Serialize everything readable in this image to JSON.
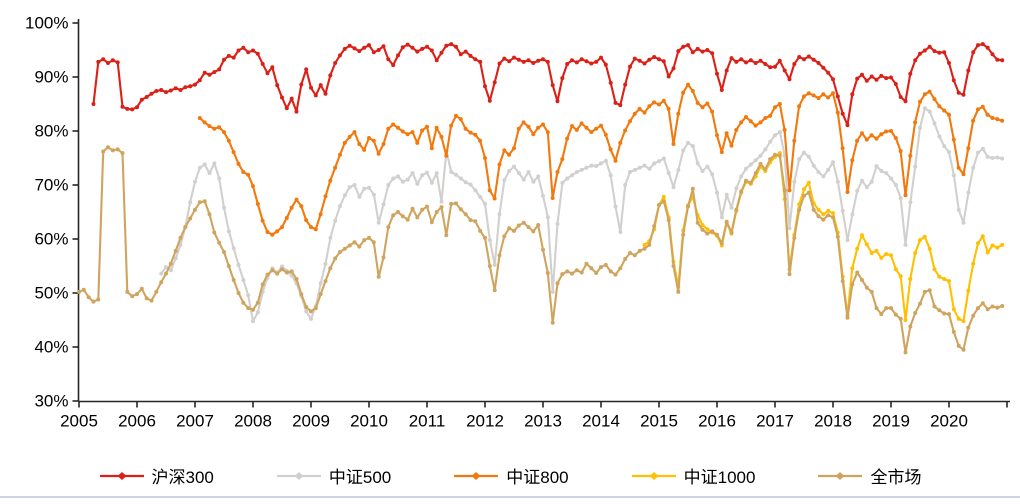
{
  "chart_data": {
    "type": "line",
    "title": "",
    "xlabel": "",
    "ylabel": "",
    "grid": false,
    "legend_position": "bottom",
    "ylim": [
      30,
      100
    ],
    "xlim": [
      2005,
      2021
    ],
    "y_tick_labels": [
      "100%",
      "90%",
      "80%",
      "70%",
      "60%",
      "50%",
      "40%",
      "30%"
    ],
    "x_tick_labels": [
      "2005",
      "2006",
      "2007",
      "2008",
      "2009",
      "2010",
      "2011",
      "2012",
      "2013",
      "2014",
      "2015",
      "2016",
      "2017",
      "2018",
      "2019",
      "2020"
    ],
    "series": [
      {
        "key": "hs300",
        "name": "沪深300",
        "color": "#db2018",
        "start": 2005.25,
        "step_months": 1,
        "values": [
          85.0,
          92.8,
          93.3,
          92.6,
          93.1,
          92.7,
          84.5,
          84.1,
          84.0,
          84.4,
          85.8,
          86.3,
          86.9,
          87.4,
          87.6,
          87.2,
          87.5,
          87.9,
          87.6,
          88.1,
          88.3,
          88.6,
          89.4,
          90.8,
          90.4,
          90.9,
          91.4,
          93.2,
          93.9,
          93.6,
          94.9,
          95.4,
          94.6,
          94.9,
          94.3,
          92.4,
          90.7,
          91.8,
          88.5,
          86.2,
          84.2,
          86.0,
          83.6,
          88.6,
          91.4,
          88.0,
          86.6,
          88.5,
          86.9,
          90.3,
          92.6,
          94.0,
          95.2,
          95.8,
          95.3,
          94.8,
          95.4,
          95.9,
          94.6,
          95.0,
          95.7,
          93.3,
          92.2,
          94.0,
          95.5,
          96.0,
          95.4,
          94.7,
          95.2,
          95.6,
          94.9,
          93.1,
          94.5,
          95.8,
          96.1,
          95.6,
          94.2,
          94.7,
          93.9,
          93.3,
          92.8,
          88.3,
          85.6,
          89.0,
          92.5,
          93.4,
          92.9,
          93.6,
          93.2,
          92.8,
          93.1,
          92.6,
          93.0,
          93.3,
          92.8,
          88.5,
          85.5,
          89.8,
          92.4,
          93.1,
          92.7,
          93.3,
          92.9,
          92.5,
          92.8,
          93.6,
          92.3,
          88.9,
          85.2,
          84.8,
          88.6,
          91.9,
          93.4,
          93.0,
          92.5,
          93.2,
          93.7,
          93.3,
          92.9,
          90.1,
          91.6,
          94.8,
          95.6,
          95.9,
          94.6,
          95.2,
          94.7,
          95.0,
          94.4,
          90.6,
          87.6,
          91.2,
          93.5,
          92.8,
          93.3,
          92.7,
          93.1,
          92.6,
          93.0,
          92.4,
          91.8,
          91.9,
          93.0,
          91.2,
          89.6,
          92.4,
          93.7,
          93.3,
          93.8,
          93.2,
          92.6,
          91.7,
          90.8,
          89.6,
          86.4,
          83.2,
          81.1,
          86.8,
          89.7,
          90.4,
          89.3,
          90.1,
          89.5,
          90.2,
          89.8,
          89.9,
          88.7,
          86.3,
          85.5,
          90.6,
          93.1,
          94.3,
          94.9,
          95.6,
          94.8,
          94.5,
          94.6,
          92.6,
          89.4,
          87.1,
          86.7,
          91.2,
          94.6,
          95.9,
          96.1,
          95.4,
          94.2,
          93.2,
          93.1
        ]
      },
      {
        "key": "zz500",
        "name": "中证500",
        "color": "#d2d0ce",
        "start": 2006.417,
        "step_months": 1,
        "values": [
          53.6,
          54.8,
          54.2,
          56.4,
          58.9,
          62.3,
          66.8,
          70.6,
          73.2,
          73.8,
          72.2,
          74.0,
          71.2,
          65.8,
          61.4,
          58.3,
          55.2,
          52.4,
          49.6,
          44.8,
          46.4,
          50.2,
          52.8,
          54.6,
          53.8,
          54.9,
          54.1,
          53.2,
          51.8,
          49.4,
          46.6,
          45.2,
          47.6,
          51.8,
          55.4,
          60.2,
          63.4,
          66.1,
          68.1,
          69.6,
          70.0,
          67.8,
          69.3,
          69.5,
          68.2,
          63.0,
          66.4,
          70.0,
          71.2,
          71.6,
          70.6,
          71.0,
          72.2,
          70.2,
          71.8,
          72.3,
          70.4,
          72.2,
          66.9,
          76.3,
          72.4,
          71.9,
          71.2,
          70.5,
          70.1,
          69.0,
          67.8,
          66.5,
          59.8,
          55.2,
          64.6,
          70.9,
          72.6,
          73.4,
          72.2,
          71.0,
          72.4,
          70.6,
          71.6,
          68.0,
          64.0,
          50.2,
          62.8,
          70.4,
          71.2,
          71.8,
          72.4,
          72.8,
          73.2,
          73.6,
          73.5,
          74.0,
          74.5,
          71.8,
          66.0,
          61.3,
          70.0,
          72.4,
          72.8,
          73.2,
          73.6,
          73.0,
          74.0,
          74.4,
          74.9,
          72.2,
          69.6,
          72.8,
          76.4,
          77.8,
          77.2,
          74.0,
          72.6,
          73.4,
          72.0,
          68.6,
          64.0,
          68.2,
          65.8,
          69.4,
          71.6,
          73.0,
          73.8,
          74.6,
          75.4,
          76.6,
          78.0,
          79.2,
          79.8,
          75.4,
          62.0,
          70.6,
          74.8,
          76.0,
          75.2,
          73.6,
          72.4,
          71.6,
          72.8,
          74.2,
          70.6,
          65.2,
          59.8,
          64.6,
          68.9,
          70.8,
          69.6,
          70.6,
          73.5,
          72.6,
          72.2,
          71.2,
          70.0,
          67.6,
          58.9,
          66.8,
          73.4,
          80.6,
          84.2,
          83.6,
          81.4,
          79.0,
          77.2,
          76.1,
          71.8,
          65.4,
          63.0,
          68.6,
          73.2,
          76.0,
          76.7,
          75.2,
          75.0,
          75.1,
          74.9
        ]
      },
      {
        "key": "zz800",
        "name": "中证800",
        "color": "#f1790e",
        "start": 2007.083,
        "step_months": 1,
        "values": [
          82.4,
          81.6,
          80.9,
          80.4,
          80.7,
          79.8,
          78.2,
          76.1,
          73.9,
          72.4,
          71.9,
          69.8,
          66.5,
          63.4,
          61.3,
          60.8,
          61.4,
          62.2,
          63.9,
          65.8,
          67.3,
          66.1,
          63.5,
          62.2,
          61.8,
          64.6,
          67.9,
          70.8,
          73.2,
          75.6,
          77.8,
          78.9,
          79.8,
          77.6,
          76.5,
          78.7,
          78.2,
          75.8,
          77.6,
          80.4,
          81.2,
          80.6,
          79.9,
          79.4,
          79.8,
          77.8,
          80.1,
          80.8,
          76.8,
          80.6,
          78.9,
          75.4,
          81.0,
          82.8,
          82.2,
          80.4,
          79.7,
          79.3,
          78.2,
          75.0,
          69.0,
          67.5,
          73.8,
          76.4,
          75.6,
          76.8,
          80.4,
          81.6,
          80.8,
          79.4,
          80.6,
          81.2,
          79.8,
          67.6,
          72.4,
          74.8,
          78.6,
          80.9,
          80.2,
          81.4,
          80.6,
          79.8,
          80.4,
          81.0,
          79.3,
          76.6,
          74.5,
          77.8,
          80.1,
          81.8,
          83.2,
          84.1,
          83.4,
          84.6,
          85.3,
          84.9,
          85.6,
          84.1,
          77.6,
          83.2,
          87.1,
          88.6,
          87.4,
          85.2,
          84.4,
          85.1,
          83.6,
          79.2,
          76.1,
          79.6,
          77.3,
          80.2,
          81.6,
          82.6,
          81.8,
          81.0,
          81.6,
          82.4,
          82.8,
          84.4,
          85.0,
          80.2,
          69.0,
          78.2,
          84.6,
          86.4,
          87.0,
          86.6,
          86.1,
          86.8,
          86.2,
          87.0,
          83.4,
          76.8,
          68.7,
          74.6,
          78.2,
          79.6,
          78.4,
          79.2,
          78.6,
          79.4,
          79.9,
          80.0,
          78.7,
          76.3,
          68.1,
          75.4,
          81.6,
          85.4,
          86.8,
          87.3,
          85.9,
          84.6,
          83.8,
          83.0,
          78.4,
          73.2,
          72.0,
          76.8,
          81.9,
          84.0,
          84.5,
          83.0,
          82.4,
          82.2,
          81.9
        ]
      },
      {
        "key": "zz1000",
        "name": "中证1000",
        "color": "#ffc003",
        "start": 2014.75,
        "step_months": 1,
        "values": [
          58.9,
          59.6,
          61.8,
          66.3,
          67.8,
          64.0,
          55.8,
          51.2,
          61.6,
          66.2,
          67.8,
          64.4,
          62.6,
          61.8,
          61.2,
          60.6,
          58.8,
          63.0,
          61.0,
          65.2,
          68.6,
          70.6,
          70.2,
          71.6,
          73.4,
          72.6,
          74.2,
          75.2,
          75.9,
          67.4,
          54.4,
          60.8,
          66.4,
          69.2,
          70.4,
          66.6,
          65.4,
          64.6,
          65.2,
          64.8,
          61.2,
          53.0,
          45.9,
          54.6,
          58.2,
          60.7,
          59.0,
          57.4,
          57.8,
          56.5,
          57.2,
          57.0,
          54.4,
          53.1,
          45.0,
          52.6,
          57.4,
          59.8,
          60.4,
          58.2,
          54.4,
          53.0,
          52.6,
          52.2,
          47.0,
          45.2,
          44.8,
          50.4,
          55.4,
          59.2,
          60.5,
          57.5,
          58.8,
          58.4,
          58.9
        ]
      },
      {
        "key": "all-market",
        "name": "全市场",
        "color": "#cfa45f",
        "start": 2005.0,
        "step_months": 1,
        "values": [
          50.2,
          50.6,
          49.2,
          48.4,
          48.8,
          76.2,
          77.0,
          76.4,
          76.6,
          75.9,
          50.2,
          49.4,
          49.8,
          50.8,
          49.0,
          48.6,
          50.2,
          52.0,
          53.6,
          55.4,
          57.8,
          60.2,
          62.2,
          63.8,
          65.4,
          66.8,
          67.0,
          64.6,
          61.2,
          59.3,
          57.6,
          55.0,
          52.4,
          50.0,
          48.2,
          47.2,
          46.9,
          48.2,
          51.6,
          53.4,
          54.2,
          53.6,
          54.4,
          53.8,
          54.0,
          52.6,
          49.8,
          47.4,
          46.6,
          47.2,
          49.8,
          52.2,
          54.6,
          56.4,
          57.6,
          58.2,
          58.8,
          59.4,
          58.6,
          59.8,
          60.2,
          59.4,
          53.0,
          56.6,
          62.2,
          64.4,
          65.0,
          64.2,
          63.6,
          65.6,
          64.0,
          65.4,
          66.0,
          63.1,
          65.0,
          65.9,
          60.7,
          66.5,
          66.6,
          65.5,
          64.6,
          63.5,
          63.3,
          61.5,
          60.2,
          55.0,
          50.5,
          57.0,
          60.5,
          62.0,
          61.5,
          62.5,
          63.0,
          62.2,
          61.4,
          62.6,
          58.0,
          53.7,
          44.5,
          51.8,
          53.5,
          54.0,
          53.6,
          54.2,
          53.8,
          55.4,
          54.6,
          53.7,
          54.8,
          55.2,
          54.0,
          53.4,
          54.6,
          56.3,
          57.4,
          57.0,
          57.8,
          58.2,
          58.9,
          62.4,
          66.3,
          67.0,
          63.5,
          55.0,
          50.2,
          60.8,
          66.0,
          69.3,
          63.0,
          61.7,
          61.0,
          61.4,
          60.8,
          59.2,
          63.2,
          61.2,
          65.4,
          68.8,
          70.8,
          70.4,
          72.2,
          73.9,
          72.9,
          74.8,
          75.6,
          75.4,
          69.0,
          53.5,
          60.2,
          65.4,
          68.0,
          68.6,
          65.4,
          64.2,
          63.6,
          64.4,
          64.0,
          60.4,
          52.2,
          45.4,
          51.6,
          53.8,
          52.4,
          51.0,
          50.2,
          47.2,
          46.1,
          47.2,
          47.2,
          46.0,
          45.2,
          39.0,
          43.8,
          46.3,
          48.0,
          50.2,
          50.5,
          47.5,
          46.8,
          46.2,
          46.1,
          42.8,
          40.2,
          39.5,
          43.6,
          45.8,
          47.2,
          48.1,
          47.0,
          47.5,
          47.3,
          47.6
        ]
      }
    ]
  },
  "footer": {
    "divider_color": "#ccd6e4"
  }
}
